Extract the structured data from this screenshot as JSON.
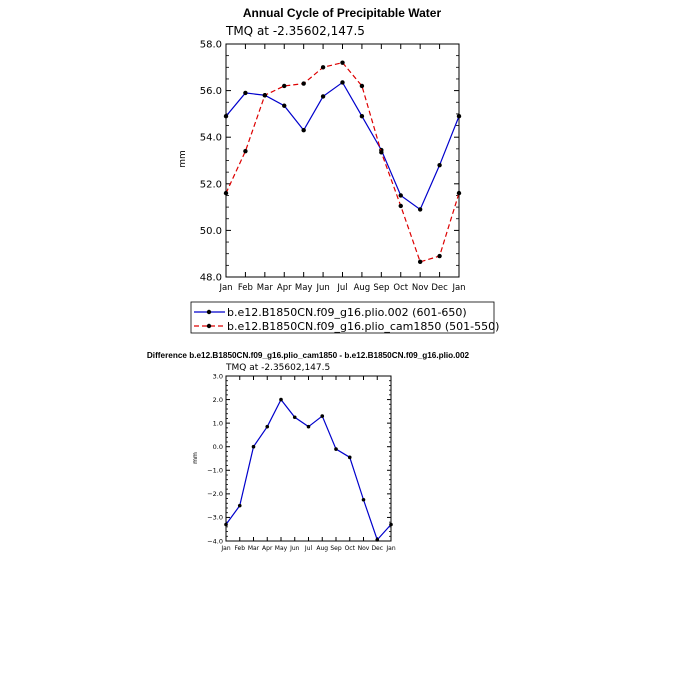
{
  "chart_data": [
    {
      "type": "line",
      "title": "Annual Cycle of Precipitable Water",
      "subtitle": "TMQ at -2.35602,147.5",
      "ylabel": "mm",
      "xlabel": "",
      "ylim": [
        48.0,
        58.0
      ],
      "yticks": [
        "48.0",
        "50.0",
        "52.0",
        "54.0",
        "56.0",
        "58.0"
      ],
      "categories": [
        "Jan",
        "Feb",
        "Mar",
        "Apr",
        "May",
        "Jun",
        "Jul",
        "Aug",
        "Sep",
        "Oct",
        "Nov",
        "Dec",
        "Jan"
      ],
      "legend_placement": "below",
      "series": [
        {
          "name": "b.e12.B1850CN.f09_g16.plio.002 (601-650)",
          "color": "#0000cc",
          "style": "solid",
          "values": [
            54.9,
            55.9,
            55.8,
            55.35,
            54.3,
            55.75,
            56.35,
            54.9,
            53.45,
            51.5,
            50.9,
            52.8,
            54.9
          ]
        },
        {
          "name": "b.e12.B1850CN.f09_g16.plio_cam1850 (501-550)",
          "color": "#dd0000",
          "style": "dashed",
          "values": [
            51.6,
            53.4,
            55.8,
            56.2,
            56.3,
            57.0,
            57.2,
            56.2,
            53.35,
            51.05,
            48.65,
            48.9,
            51.6
          ]
        }
      ]
    },
    {
      "type": "line",
      "title": "Difference b.e12.B1850CN.f09_g16.plio_cam1850 - b.e12.B1850CN.f09_g16.plio.002",
      "subtitle": "TMQ at -2.35602,147.5",
      "ylabel": "mm",
      "xlabel": "",
      "ylim": [
        -4.0,
        3.0
      ],
      "yticks": [
        "-4.0",
        "-3.0",
        "-2.0",
        "-1.0",
        "0.0",
        "1.0",
        "2.0",
        "3.0"
      ],
      "categories": [
        "Jan",
        "Feb",
        "Mar",
        "Apr",
        "May",
        "Jun",
        "Jul",
        "Aug",
        "Sep",
        "Oct",
        "Nov",
        "Dec",
        "Jan"
      ],
      "series": [
        {
          "name": "",
          "color": "#0000cc",
          "style": "solid",
          "values": [
            -3.3,
            -2.5,
            0.0,
            0.85,
            2.0,
            1.25,
            0.85,
            1.3,
            -0.1,
            -0.45,
            -2.25,
            -3.95,
            -3.3
          ]
        }
      ]
    }
  ]
}
